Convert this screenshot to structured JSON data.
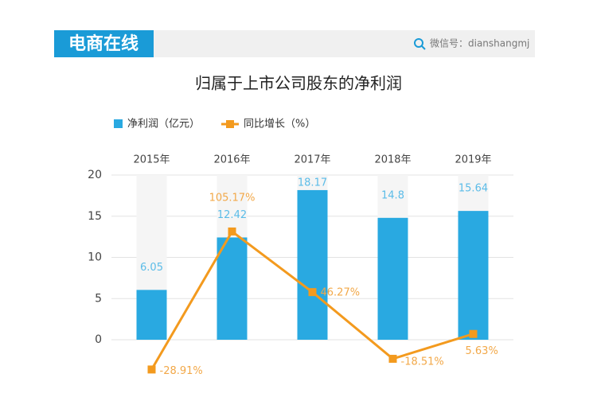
{
  "header": {
    "logo": "电商在线",
    "wechat": "微信号：dianshangmj"
  },
  "chart_data": {
    "type": "bar-line",
    "title": "归属于上市公司股东的净利润",
    "categories": [
      "2015年",
      "2016年",
      "2017年",
      "2018年",
      "2019年"
    ],
    "series": [
      {
        "name": "净利润（亿元）",
        "color": "#29a9e1",
        "type": "bar",
        "values": [
          6.05,
          12.42,
          18.17,
          14.8,
          15.64
        ]
      },
      {
        "name": "同比增长（%）",
        "color": "#f39a1e",
        "type": "line",
        "axis": "y2",
        "values": [
          -28.91,
          105.17,
          46.27,
          -18.51,
          5.63
        ],
        "value_labels": [
          "-28.91%",
          "105.17%",
          "46.27%",
          "-18.51%",
          "5.63%"
        ]
      }
    ],
    "ylim": [
      0,
      20
    ],
    "yticks": [
      0,
      5,
      10,
      15,
      20
    ],
    "y2lim": [
      0,
      160
    ],
    "grid": true
  }
}
